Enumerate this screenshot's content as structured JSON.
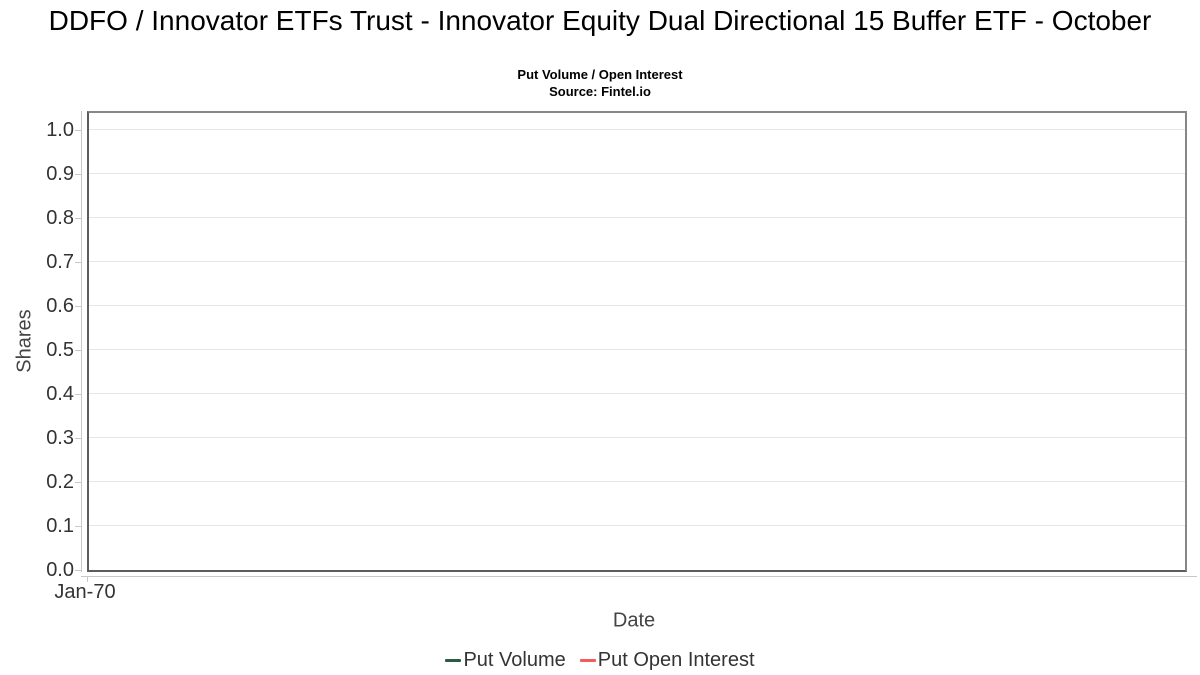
{
  "chart_data": {
    "type": "line",
    "title": "DDFO / Innovator ETFs Trust - Innovator Equity Dual Directional 15 Buffer ETF - October",
    "subtitle": "Put Volume / Open Interest",
    "source": "Source: Fintel.io",
    "xlabel": "Date",
    "ylabel": "Shares",
    "x_ticks": [
      "Jan-70"
    ],
    "y_ticks": [
      "0.0",
      "0.1",
      "0.2",
      "0.3",
      "0.4",
      "0.5",
      "0.6",
      "0.7",
      "0.8",
      "0.9",
      "1.0"
    ],
    "ylim": [
      0,
      1.04
    ],
    "grid": true,
    "legend_position": "bottom",
    "series": [
      {
        "name": "Put Volume",
        "color": "#2c5c3f",
        "x": [],
        "values": []
      },
      {
        "name": "Put Open Interest",
        "color": "#f45b5b",
        "x": [],
        "values": []
      }
    ],
    "colors": {
      "grid_line": "#e7e7e7",
      "axis_line": "#c8c8c8",
      "plot_border": "#878787",
      "tick_text": "#333333"
    }
  }
}
